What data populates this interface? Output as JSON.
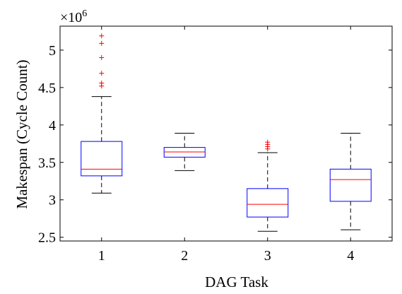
{
  "chart_data": {
    "type": "boxplot",
    "xlabel": "DAG Task",
    "ylabel": "Makespan (Cycle Count)",
    "y_multiplier": "×10",
    "y_multiplier_exponent": "6",
    "categories": [
      "1",
      "2",
      "3",
      "4"
    ],
    "ylim": [
      2.45,
      5.32
    ],
    "yticks": [
      2.5,
      3,
      3.5,
      4,
      4.5,
      5
    ],
    "ytick_labels": [
      "2.5",
      "3",
      "3.5",
      "4",
      "4.5",
      "5"
    ],
    "grid": false,
    "boxes": [
      {
        "category": "1",
        "min": 3.09,
        "q1": 3.32,
        "median": 3.41,
        "q3": 3.78,
        "max": 4.38,
        "outliers": [
          4.52,
          4.56,
          4.69,
          4.9,
          5.09,
          5.19
        ]
      },
      {
        "category": "2",
        "min": 3.39,
        "q1": 3.57,
        "median": 3.64,
        "q3": 3.7,
        "max": 3.89,
        "outliers": []
      },
      {
        "category": "3",
        "min": 2.58,
        "q1": 2.77,
        "median": 2.94,
        "q3": 3.15,
        "max": 3.63,
        "outliers": [
          3.68,
          3.71,
          3.74,
          3.77
        ]
      },
      {
        "category": "4",
        "min": 2.6,
        "q1": 2.98,
        "median": 3.27,
        "q3": 3.41,
        "max": 3.89,
        "outliers": []
      }
    ],
    "colors": {
      "box": "#0000ff",
      "median": "#ff0000",
      "outlier": "#ff0000",
      "whisker": "#000000"
    }
  }
}
